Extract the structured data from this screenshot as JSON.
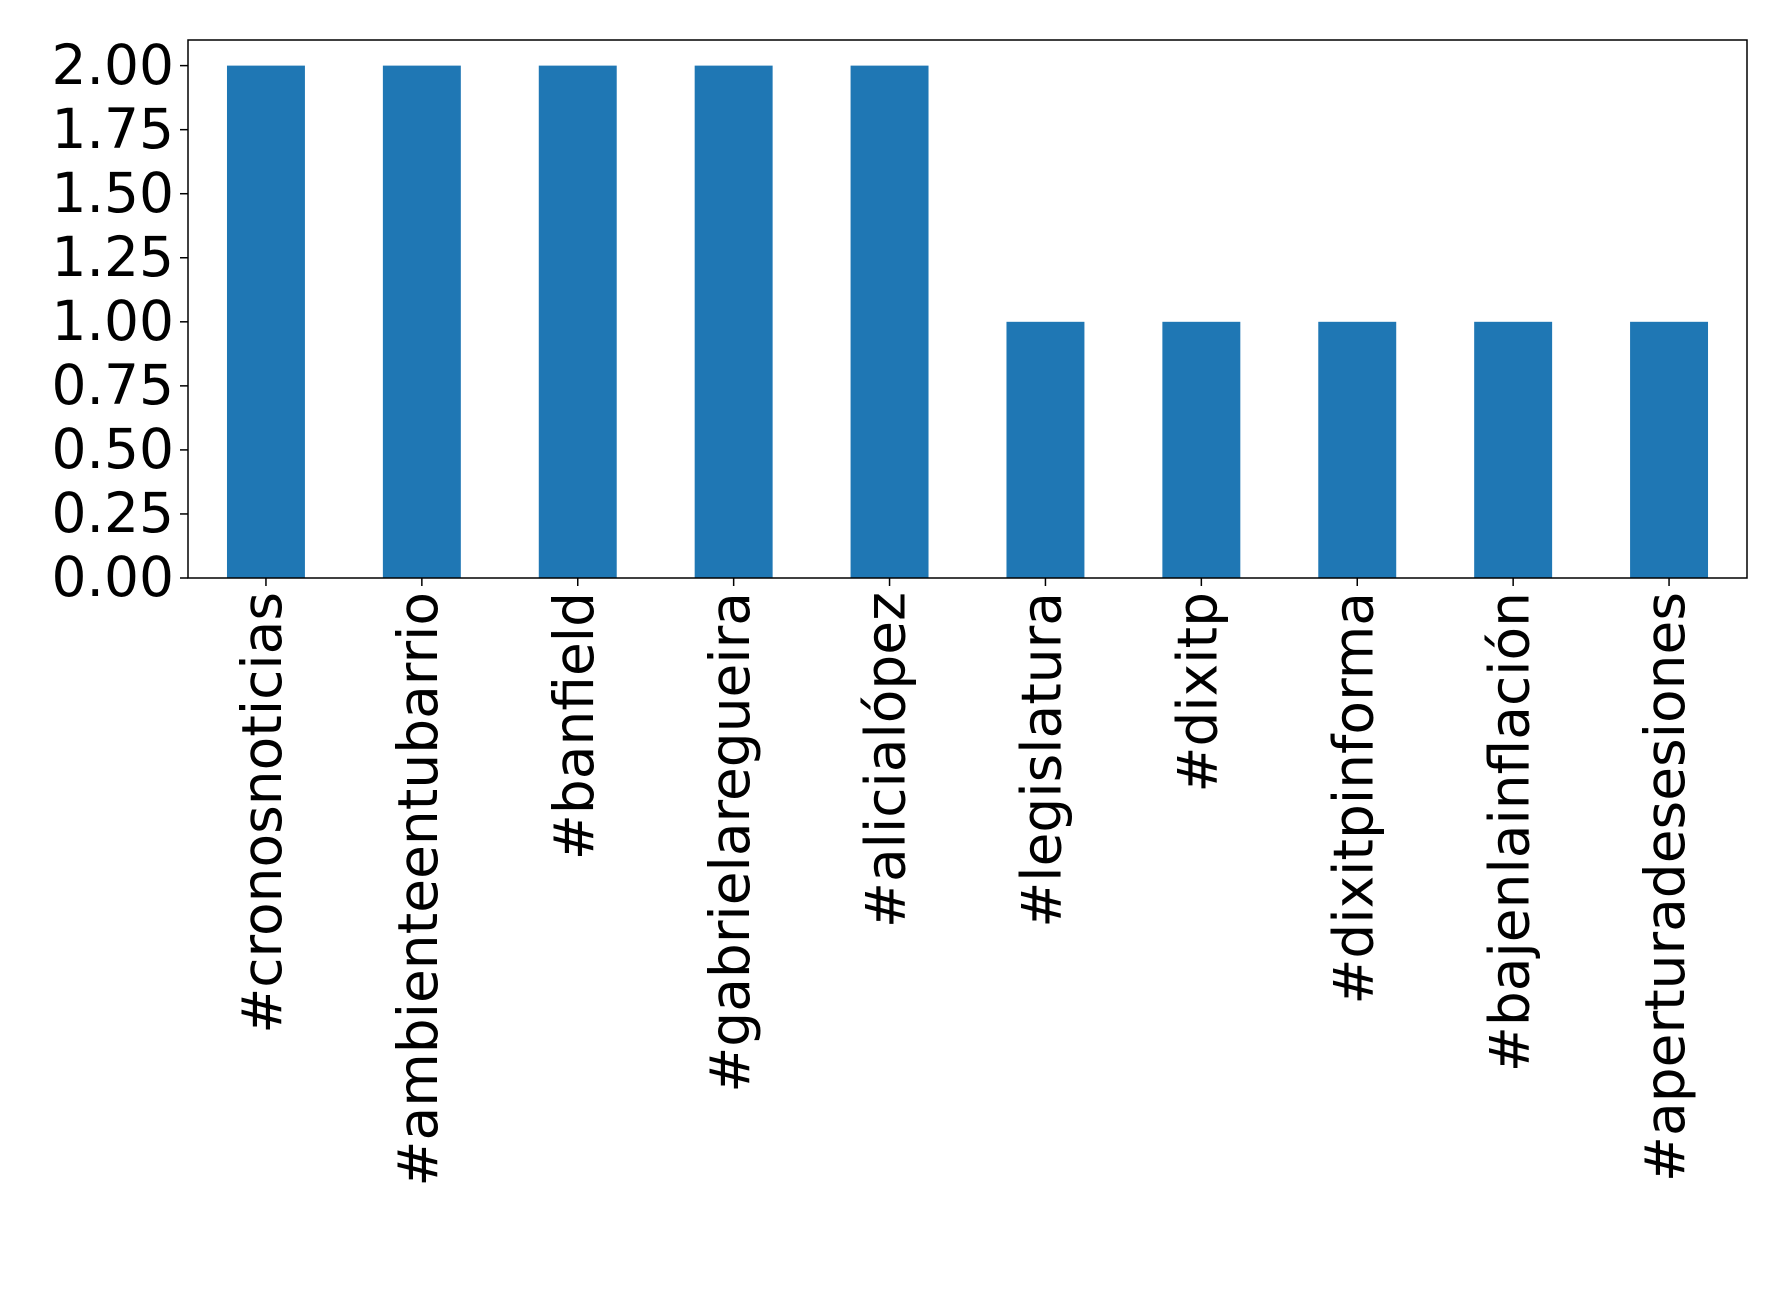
{
  "chart_data": {
    "type": "bar",
    "categories": [
      "#cronosnoticias",
      "#ambienteentubarrio",
      "#banfield",
      "#gabrielaregueira",
      "#alicialópez",
      "#legislatura",
      "#dixitp",
      "#dixitpinforma",
      "#bajenlainflación",
      "#aperturadesesiones"
    ],
    "values": [
      2,
      2,
      2,
      2,
      2,
      1,
      1,
      1,
      1,
      1
    ],
    "color": "#1f77b4",
    "ylim": [
      0,
      2.1
    ],
    "yticks": [
      {
        "value": 0,
        "label": "0.00"
      },
      {
        "value": 0.25,
        "label": "0.25"
      },
      {
        "value": 0.5,
        "label": "0.50"
      },
      {
        "value": 0.75,
        "label": "0.75"
      },
      {
        "value": 1,
        "label": "1.00"
      },
      {
        "value": 1.25,
        "label": "1.25"
      },
      {
        "value": 1.5,
        "label": "1.50"
      },
      {
        "value": 1.75,
        "label": "1.75"
      },
      {
        "value": 2,
        "label": "2.00"
      }
    ],
    "grid": false
  }
}
